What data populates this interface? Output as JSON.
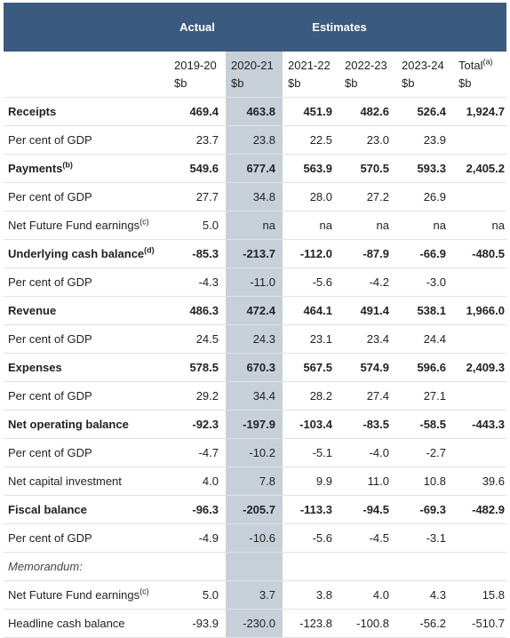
{
  "header": {
    "actual": "Actual",
    "estimates": "Estimates"
  },
  "columns": [
    {
      "year": "2019-20",
      "unit": "$b"
    },
    {
      "year": "2020-21",
      "unit": "$b"
    },
    {
      "year": "2021-22",
      "unit": "$b"
    },
    {
      "year": "2022-23",
      "unit": "$b"
    },
    {
      "year": "2023-24",
      "unit": "$b"
    },
    {
      "year": "Total",
      "note": "(a)",
      "unit": "$b"
    }
  ],
  "rows": [
    {
      "label": "Receipts",
      "bold": true,
      "cells": [
        "469.4",
        "463.8",
        "451.9",
        "482.6",
        "526.4",
        "1,924.7"
      ]
    },
    {
      "label": "Per cent of GDP",
      "cells": [
        "23.7",
        "23.8",
        "22.5",
        "23.0",
        "23.9",
        null
      ]
    },
    {
      "label": "Payments",
      "note": "(b)",
      "bold": true,
      "cells": [
        "549.6",
        "677.4",
        "563.9",
        "570.5",
        "593.3",
        "2,405.2"
      ]
    },
    {
      "label": "Per cent of GDP",
      "cells": [
        "27.7",
        "34.8",
        "28.0",
        "27.2",
        "26.9",
        null
      ]
    },
    {
      "label": "Net Future Fund earnings",
      "note": "(c)",
      "cells": [
        "5.0",
        "na",
        "na",
        "na",
        "na",
        "na"
      ]
    },
    {
      "label": "Underlying cash balance",
      "note": "(d)",
      "bold": true,
      "cells": [
        "-85.3",
        "-213.7",
        "-112.0",
        "-87.9",
        "-66.9",
        "-480.5"
      ]
    },
    {
      "label": "Per cent of GDP",
      "cells": [
        "-4.3",
        "-11.0",
        "-5.6",
        "-4.2",
        "-3.0",
        null
      ]
    },
    {
      "label": "Revenue",
      "bold": true,
      "cells": [
        "486.3",
        "472.4",
        "464.1",
        "491.4",
        "538.1",
        "1,966.0"
      ]
    },
    {
      "label": "Per cent of GDP",
      "cells": [
        "24.5",
        "24.3",
        "23.1",
        "23.4",
        "24.4",
        null
      ]
    },
    {
      "label": "Expenses",
      "bold": true,
      "cells": [
        "578.5",
        "670.3",
        "567.5",
        "574.9",
        "596.6",
        "2,409.3"
      ]
    },
    {
      "label": "Per cent of GDP",
      "cells": [
        "29.2",
        "34.4",
        "28.2",
        "27.4",
        "27.1",
        null
      ]
    },
    {
      "label": "Net operating balance",
      "bold": true,
      "cells": [
        "-92.3",
        "-197.9",
        "-103.4",
        "-83.5",
        "-58.5",
        "-443.3"
      ]
    },
    {
      "label": "Per cent of GDP",
      "cells": [
        "-4.7",
        "-10.2",
        "-5.1",
        "-4.0",
        "-2.7",
        null
      ]
    },
    {
      "label": "Net capital investment",
      "cells": [
        "4.0",
        "7.8",
        "9.9",
        "11.0",
        "10.8",
        "39.6"
      ]
    },
    {
      "label": "Fiscal balance",
      "bold": true,
      "cells": [
        "-96.3",
        "-205.7",
        "-113.3",
        "-94.5",
        "-69.3",
        "-482.9"
      ]
    },
    {
      "label": "Per cent of GDP",
      "cells": [
        "-4.9",
        "-10.6",
        "-5.6",
        "-4.5",
        "-3.1",
        null
      ]
    },
    {
      "label": "Memorandum:",
      "italic": true,
      "cells": [
        null,
        null,
        null,
        null,
        null,
        null
      ]
    },
    {
      "label": "Net Future Fund earnings",
      "note": "(c)",
      "cells": [
        "5.0",
        "3.7",
        "3.8",
        "4.0",
        "4.3",
        "15.8"
      ]
    },
    {
      "label": "Headline cash balance",
      "cells": [
        "-93.9",
        "-230.0",
        "-123.8",
        "-100.8",
        "-56.2",
        "-510.7"
      ]
    }
  ]
}
